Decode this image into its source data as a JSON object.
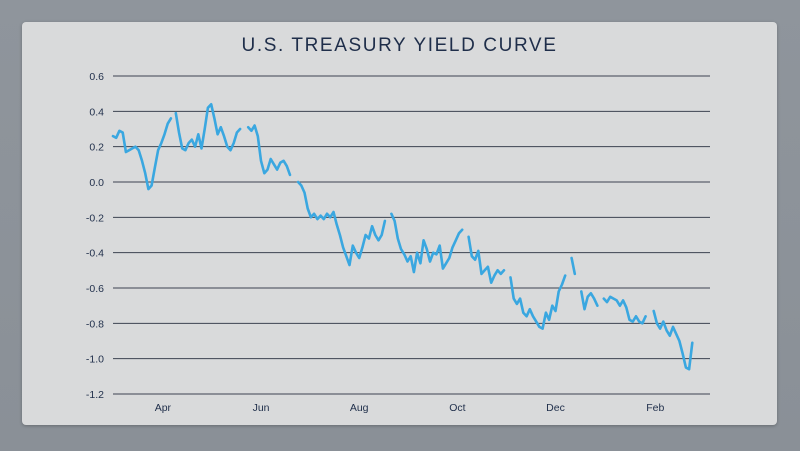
{
  "chart_data": {
    "type": "line",
    "title": "U.S. TREASURY YIELD CURVE",
    "xlabel": "",
    "ylabel": "",
    "ylim": [
      -1.2,
      0.6
    ],
    "yticks": [
      "0.6",
      "0.4",
      "0.2",
      "0.0",
      "-0.2",
      "-0.4",
      "-0.6",
      "-0.8",
      "-1.0",
      "-1.2"
    ],
    "ytick_values": [
      0.6,
      0.4,
      0.2,
      0.0,
      -0.2,
      -0.4,
      -0.6,
      -0.8,
      -1.0,
      -1.2
    ],
    "xticks": [
      "Apr",
      "Jun",
      "Aug",
      "Oct",
      "Dec",
      "Feb"
    ],
    "xlim": [
      "2022-03-01",
      "2023-03-07"
    ],
    "grid": "horizontal",
    "line_color": "#3aa7e0",
    "series": [
      {
        "segments": [
          [
            [
              "2022-03-01",
              0.26
            ],
            [
              "2022-03-03",
              0.25
            ],
            [
              "2022-03-05",
              0.29
            ],
            [
              "2022-03-07",
              0.28
            ],
            [
              "2022-03-09",
              0.17
            ],
            [
              "2022-03-11",
              0.18
            ],
            [
              "2022-03-13",
              0.19
            ],
            [
              "2022-03-15",
              0.2
            ],
            [
              "2022-03-17",
              0.18
            ],
            [
              "2022-03-19",
              0.12
            ],
            [
              "2022-03-21",
              0.05
            ],
            [
              "2022-03-23",
              -0.04
            ],
            [
              "2022-03-25",
              -0.02
            ],
            [
              "2022-03-27",
              0.08
            ],
            [
              "2022-03-29",
              0.18
            ],
            [
              "2022-03-31",
              0.22
            ],
            [
              "2022-04-02",
              0.27
            ],
            [
              "2022-04-04",
              0.33
            ],
            [
              "2022-04-06",
              0.36
            ]
          ],
          [
            [
              "2022-04-09",
              0.39
            ],
            [
              "2022-04-11",
              0.28
            ],
            [
              "2022-04-13",
              0.19
            ],
            [
              "2022-04-15",
              0.18
            ],
            [
              "2022-04-17",
              0.22
            ],
            [
              "2022-04-19",
              0.24
            ],
            [
              "2022-04-21",
              0.2
            ],
            [
              "2022-04-23",
              0.27
            ],
            [
              "2022-04-25",
              0.19
            ],
            [
              "2022-04-27",
              0.3
            ],
            [
              "2022-04-29",
              0.42
            ],
            [
              "2022-05-01",
              0.44
            ],
            [
              "2022-05-03",
              0.36
            ],
            [
              "2022-05-05",
              0.27
            ],
            [
              "2022-05-07",
              0.31
            ],
            [
              "2022-05-09",
              0.26
            ],
            [
              "2022-05-11",
              0.2
            ],
            [
              "2022-05-13",
              0.18
            ],
            [
              "2022-05-15",
              0.22
            ],
            [
              "2022-05-17",
              0.28
            ],
            [
              "2022-05-19",
              0.3
            ]
          ],
          [
            [
              "2022-05-24",
              0.31
            ],
            [
              "2022-05-26",
              0.29
            ],
            [
              "2022-05-28",
              0.32
            ],
            [
              "2022-05-30",
              0.26
            ],
            [
              "2022-06-01",
              0.12
            ],
            [
              "2022-06-03",
              0.05
            ],
            [
              "2022-06-05",
              0.07
            ],
            [
              "2022-06-07",
              0.13
            ],
            [
              "2022-06-09",
              0.1
            ],
            [
              "2022-06-11",
              0.07
            ],
            [
              "2022-06-13",
              0.11
            ],
            [
              "2022-06-15",
              0.12
            ],
            [
              "2022-06-17",
              0.09
            ],
            [
              "2022-06-19",
              0.04
            ]
          ],
          [
            [
              "2022-06-24",
              0.0
            ],
            [
              "2022-06-26",
              -0.02
            ],
            [
              "2022-06-28",
              -0.06
            ],
            [
              "2022-06-30",
              -0.15
            ],
            [
              "2022-07-02",
              -0.2
            ],
            [
              "2022-07-04",
              -0.18
            ],
            [
              "2022-07-06",
              -0.21
            ],
            [
              "2022-07-08",
              -0.19
            ],
            [
              "2022-07-10",
              -0.21
            ],
            [
              "2022-07-12",
              -0.18
            ],
            [
              "2022-07-14",
              -0.2
            ],
            [
              "2022-07-16",
              -0.17
            ],
            [
              "2022-07-18",
              -0.24
            ],
            [
              "2022-07-20",
              -0.3
            ],
            [
              "2022-07-22",
              -0.37
            ],
            [
              "2022-07-24",
              -0.42
            ],
            [
              "2022-07-26",
              -0.47
            ],
            [
              "2022-07-28",
              -0.36
            ],
            [
              "2022-07-30",
              -0.4
            ],
            [
              "2022-08-01",
              -0.43
            ],
            [
              "2022-08-03",
              -0.37
            ],
            [
              "2022-08-05",
              -0.3
            ],
            [
              "2022-08-07",
              -0.32
            ],
            [
              "2022-08-09",
              -0.25
            ],
            [
              "2022-08-11",
              -0.3
            ],
            [
              "2022-08-13",
              -0.33
            ],
            [
              "2022-08-15",
              -0.3
            ],
            [
              "2022-08-17",
              -0.22
            ]
          ],
          [
            [
              "2022-08-21",
              -0.18
            ],
            [
              "2022-08-23",
              -0.22
            ],
            [
              "2022-08-25",
              -0.32
            ],
            [
              "2022-08-27",
              -0.38
            ],
            [
              "2022-08-29",
              -0.41
            ],
            [
              "2022-08-31",
              -0.45
            ],
            [
              "2022-09-02",
              -0.42
            ],
            [
              "2022-09-04",
              -0.51
            ],
            [
              "2022-09-06",
              -0.4
            ],
            [
              "2022-09-08",
              -0.46
            ],
            [
              "2022-09-10",
              -0.33
            ],
            [
              "2022-09-12",
              -0.38
            ],
            [
              "2022-09-14",
              -0.45
            ],
            [
              "2022-09-16",
              -0.4
            ],
            [
              "2022-09-18",
              -0.41
            ],
            [
              "2022-09-20",
              -0.36
            ],
            [
              "2022-09-22",
              -0.49
            ],
            [
              "2022-09-24",
              -0.46
            ],
            [
              "2022-09-26",
              -0.43
            ],
            [
              "2022-09-28",
              -0.37
            ],
            [
              "2022-09-30",
              -0.33
            ],
            [
              "2022-10-02",
              -0.29
            ],
            [
              "2022-10-04",
              -0.27
            ]
          ],
          [
            [
              "2022-10-08",
              -0.31
            ],
            [
              "2022-10-10",
              -0.42
            ],
            [
              "2022-10-12",
              -0.44
            ],
            [
              "2022-10-14",
              -0.39
            ],
            [
              "2022-10-16",
              -0.52
            ],
            [
              "2022-10-18",
              -0.5
            ],
            [
              "2022-10-20",
              -0.48
            ],
            [
              "2022-10-22",
              -0.57
            ],
            [
              "2022-10-24",
              -0.53
            ],
            [
              "2022-10-26",
              -0.5
            ],
            [
              "2022-10-28",
              -0.52
            ],
            [
              "2022-10-30",
              -0.5
            ]
          ],
          [
            [
              "2022-11-03",
              -0.54
            ],
            [
              "2022-11-05",
              -0.66
            ],
            [
              "2022-11-07",
              -0.69
            ],
            [
              "2022-11-09",
              -0.66
            ],
            [
              "2022-11-11",
              -0.74
            ],
            [
              "2022-11-13",
              -0.76
            ],
            [
              "2022-11-15",
              -0.72
            ],
            [
              "2022-11-17",
              -0.76
            ],
            [
              "2022-11-19",
              -0.79
            ],
            [
              "2022-11-21",
              -0.82
            ],
            [
              "2022-11-23",
              -0.83
            ],
            [
              "2022-11-25",
              -0.74
            ],
            [
              "2022-11-27",
              -0.78
            ],
            [
              "2022-11-29",
              -0.7
            ],
            [
              "2022-12-01",
              -0.73
            ],
            [
              "2022-12-03",
              -0.62
            ],
            [
              "2022-12-05",
              -0.58
            ],
            [
              "2022-12-07",
              -0.53
            ]
          ],
          [
            [
              "2022-12-11",
              -0.43
            ],
            [
              "2022-12-13",
              -0.52
            ]
          ],
          [
            [
              "2022-12-17",
              -0.62
            ],
            [
              "2022-12-19",
              -0.72
            ],
            [
              "2022-12-21",
              -0.65
            ],
            [
              "2022-12-23",
              -0.63
            ],
            [
              "2022-12-25",
              -0.66
            ],
            [
              "2022-12-27",
              -0.7
            ]
          ],
          [
            [
              "2022-12-31",
              -0.66
            ],
            [
              "2023-01-02",
              -0.68
            ],
            [
              "2023-01-04",
              -0.65
            ],
            [
              "2023-01-06",
              -0.66
            ],
            [
              "2023-01-08",
              -0.67
            ],
            [
              "2023-01-10",
              -0.7
            ],
            [
              "2023-01-12",
              -0.67
            ],
            [
              "2023-01-14",
              -0.71
            ],
            [
              "2023-01-16",
              -0.78
            ],
            [
              "2023-01-18",
              -0.79
            ],
            [
              "2023-01-20",
              -0.76
            ],
            [
              "2023-01-22",
              -0.79
            ],
            [
              "2023-01-24",
              -0.8
            ],
            [
              "2023-01-26",
              -0.76
            ]
          ],
          [
            [
              "2023-01-31",
              -0.73
            ],
            [
              "2023-02-02",
              -0.8
            ],
            [
              "2023-02-04",
              -0.83
            ],
            [
              "2023-02-06",
              -0.79
            ],
            [
              "2023-02-08",
              -0.84
            ],
            [
              "2023-02-10",
              -0.87
            ],
            [
              "2023-02-12",
              -0.82
            ],
            [
              "2023-02-14",
              -0.86
            ],
            [
              "2023-02-16",
              -0.9
            ],
            [
              "2023-02-18",
              -0.97
            ],
            [
              "2023-02-20",
              -1.05
            ],
            [
              "2023-02-22",
              -1.06
            ],
            [
              "2023-02-24",
              -0.91
            ]
          ]
        ]
      }
    ]
  }
}
